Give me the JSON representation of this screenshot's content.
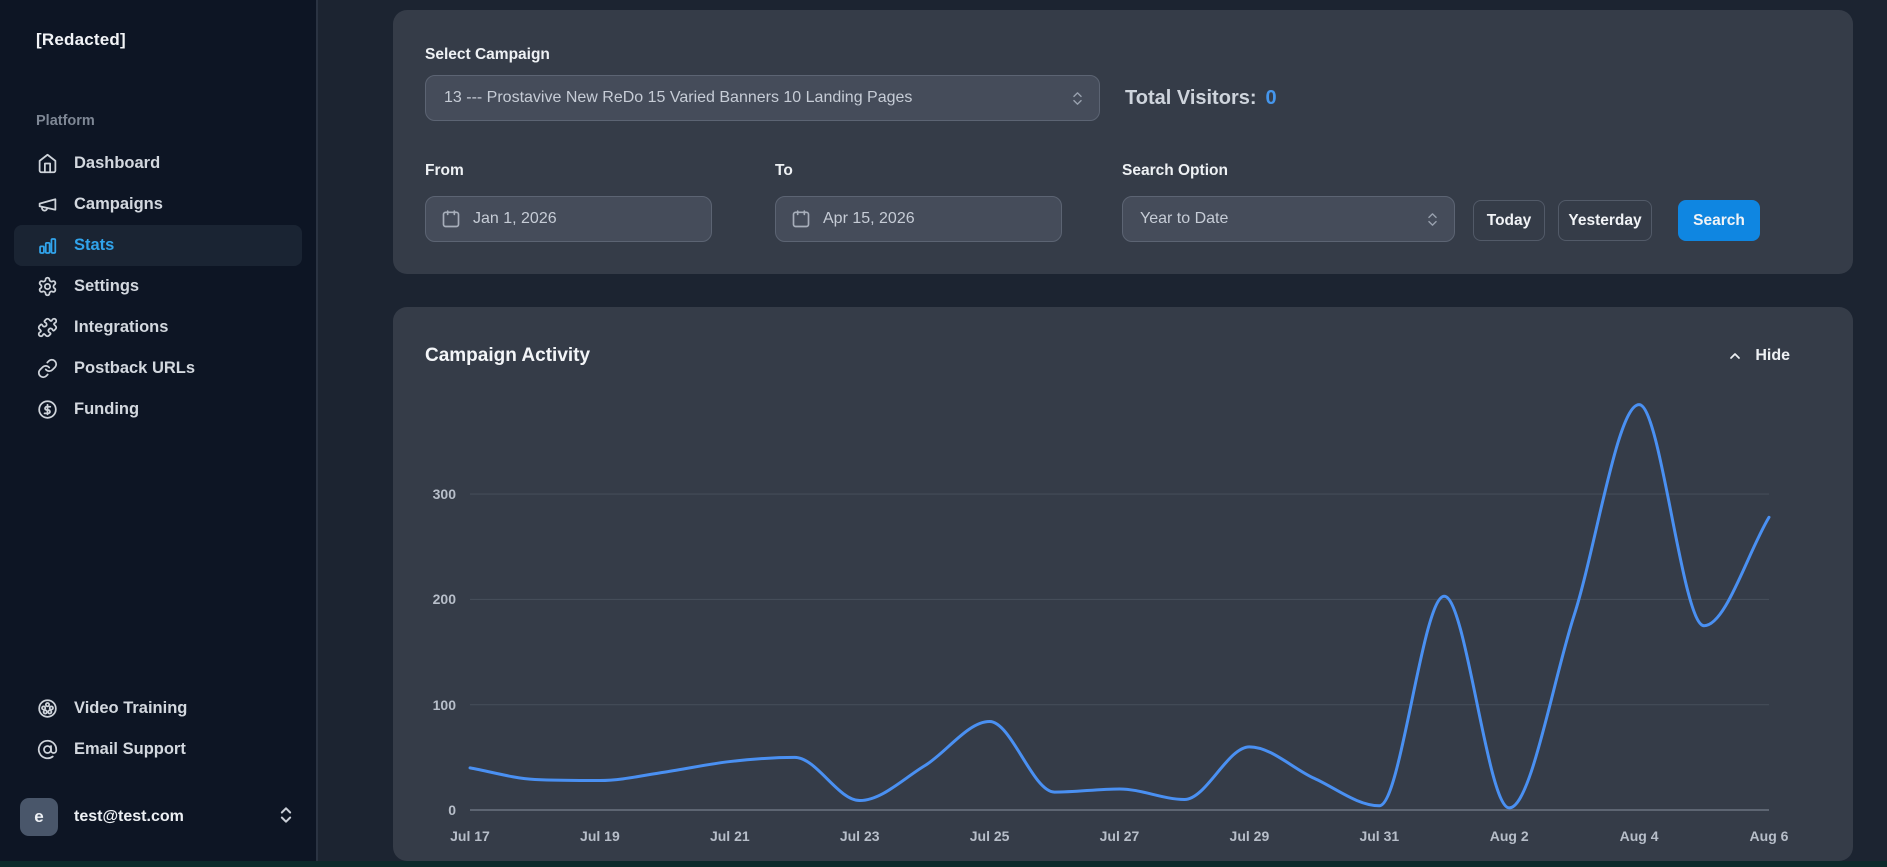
{
  "sidebar": {
    "brand": "[Redacted]",
    "section_label": "Platform",
    "items": [
      {
        "label": "Dashboard",
        "icon": "home-icon",
        "active": false
      },
      {
        "label": "Campaigns",
        "icon": "megaphone-icon",
        "active": false
      },
      {
        "label": "Stats",
        "icon": "bar-chart-icon",
        "active": true
      },
      {
        "label": "Settings",
        "icon": "gear-icon",
        "active": false
      },
      {
        "label": "Integrations",
        "icon": "puzzle-icon",
        "active": false
      },
      {
        "label": "Postback URLs",
        "icon": "link-icon",
        "active": false
      },
      {
        "label": "Funding",
        "icon": "dollar-circle-icon",
        "active": false
      }
    ],
    "footer_items": [
      {
        "label": "Video Training",
        "icon": "film-reel-icon"
      },
      {
        "label": "Email Support",
        "icon": "at-sign-icon"
      }
    ],
    "user": {
      "initial": "e",
      "email": "test@test.com"
    }
  },
  "filters": {
    "select_campaign_label": "Select Campaign",
    "campaign_value": "13 --- Prostavive New ReDo 15 Varied Banners 10 Landing Pages",
    "total_visitors_label": "Total Visitors:",
    "total_visitors_value": "0",
    "from_label": "From",
    "from_value": "Jan 1, 2026",
    "to_label": "To",
    "to_value": "Apr 15, 2026",
    "search_option_label": "Search Option",
    "search_option_value": "Year to Date",
    "today_button": "Today",
    "yesterday_button": "Yesterday",
    "search_button": "Search"
  },
  "activity": {
    "title": "Campaign Activity",
    "hide_label": "Hide"
  },
  "chart_data": {
    "type": "line",
    "title": "Campaign Activity",
    "x": [
      "Jul 17",
      "Jul 18",
      "Jul 19",
      "Jul 20",
      "Jul 21",
      "Jul 22",
      "Jul 23",
      "Jul 24",
      "Jul 25",
      "Jul 26",
      "Jul 27",
      "Jul 28",
      "Jul 29",
      "Jul 30",
      "Jul 31",
      "Aug 1",
      "Aug 2",
      "Aug 3",
      "Aug 4",
      "Aug 5",
      "Aug 6"
    ],
    "values": [
      40,
      29,
      28,
      36,
      46,
      50,
      9,
      42,
      84,
      17,
      20,
      10,
      60,
      30,
      4,
      203,
      2,
      185,
      385,
      175,
      278
    ],
    "x_tick_labels": [
      "Jul 17",
      "Jul 19",
      "Jul 21",
      "Jul 23",
      "Jul 25",
      "Jul 27",
      "Jul 29",
      "Jul 31",
      "Aug 2",
      "Aug 4",
      "Aug 6"
    ],
    "y_ticks": [
      0,
      100,
      200,
      300
    ],
    "ylim": [
      0,
      400
    ],
    "xlabel": "",
    "ylabel": "",
    "grid": true,
    "legend": "none",
    "line_color": "#4a90f2"
  },
  "colors": {
    "accent_search_blue": "#0f86e1",
    "active_link_blue": "#31a4ec",
    "visitors_value_blue": "#4596ec",
    "chart_line_blue": "#4a90f2",
    "card_bg": "#353c48",
    "sidebar_bg": "#0d1524",
    "page_bg": "#1c2431"
  }
}
